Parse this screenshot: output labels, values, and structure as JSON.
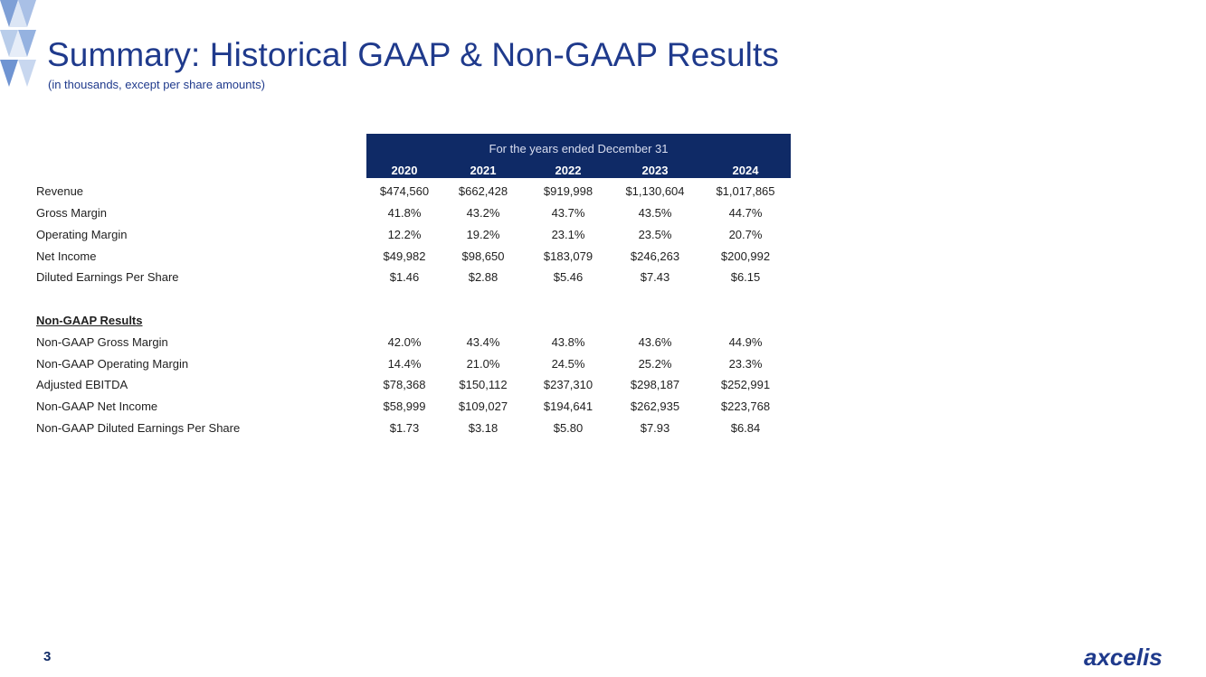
{
  "title": "Summary: Historical GAAP & Non-GAAP Results",
  "subtitle": "(in thousands, except per share amounts)",
  "table": {
    "caption": "For the years ended December 31",
    "years": [
      "2020",
      "2021",
      "2022",
      "2023",
      "2024"
    ],
    "gaap_rows": [
      {
        "label": "Revenue",
        "values": [
          "$474,560",
          "$662,428",
          "$919,998",
          "$1,130,604",
          "$1,017,865"
        ]
      },
      {
        "label": "Gross Margin",
        "values": [
          "41.8%",
          "43.2%",
          "43.7%",
          "43.5%",
          "44.7%"
        ]
      },
      {
        "label": "Operating Margin",
        "values": [
          "12.2%",
          "19.2%",
          "23.1%",
          "23.5%",
          "20.7%"
        ]
      },
      {
        "label": "Net Income",
        "values": [
          "$49,982",
          "$98,650",
          "$183,079",
          "$246,263",
          "$200,992"
        ]
      },
      {
        "label": "Diluted Earnings Per Share",
        "values": [
          "$1.46",
          "$2.88",
          "$5.46",
          "$7.43",
          "$6.15"
        ]
      }
    ],
    "non_gaap_heading": "Non-GAAP Results",
    "non_gaap_rows": [
      {
        "label": "Non-GAAP Gross Margin",
        "values": [
          "42.0%",
          "43.4%",
          "43.8%",
          "43.6%",
          "44.9%"
        ]
      },
      {
        "label": "Non-GAAP Operating Margin",
        "values": [
          "14.4%",
          "21.0%",
          "24.5%",
          "25.2%",
          "23.3%"
        ]
      },
      {
        "label": "Adjusted EBITDA",
        "values": [
          "$78,368",
          "$150,112",
          "$237,310",
          "$298,187",
          "$252,991"
        ]
      },
      {
        "label": "Non-GAAP Net Income",
        "values": [
          "$58,999",
          "$109,027",
          "$194,641",
          "$262,935",
          "$223,768"
        ]
      },
      {
        "label": "Non-GAAP Diluted Earnings Per Share",
        "values": [
          "$1.73",
          "$3.18",
          "$5.80",
          "$7.93",
          "$6.84"
        ]
      }
    ]
  },
  "page_number": "3",
  "logo_text": "axcelis",
  "colors": {
    "title": "#1f3a8c",
    "header_band": "#0f2a66",
    "logo": "#1f3a8c"
  }
}
